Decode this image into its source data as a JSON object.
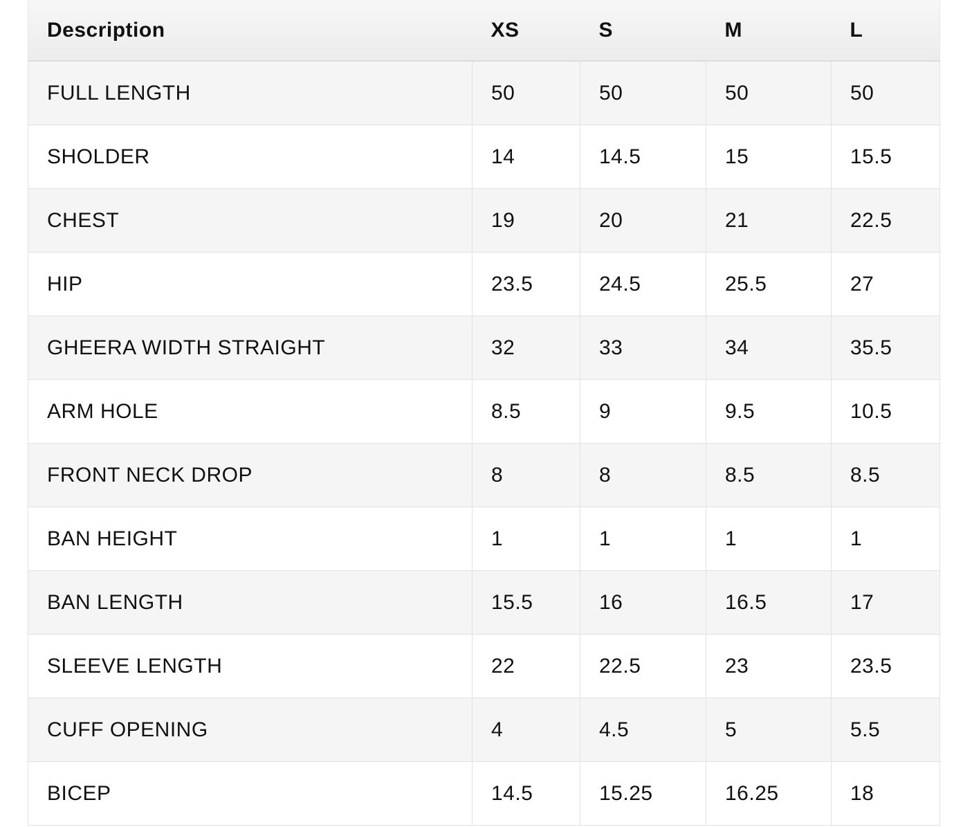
{
  "table": {
    "header": [
      "Description",
      "XS",
      "S",
      "M",
      "L"
    ],
    "rows": [
      [
        "FULL LENGTH",
        "50",
        "50",
        "50",
        "50"
      ],
      [
        "SHOLDER",
        "14",
        "14.5",
        "15",
        "15.5"
      ],
      [
        "CHEST",
        "19",
        "20",
        "21",
        "22.5"
      ],
      [
        "HIP",
        "23.5",
        "24.5",
        "25.5",
        "27"
      ],
      [
        "GHEERA WIDTH STRAIGHT",
        "32",
        "33",
        "34",
        "35.5"
      ],
      [
        "ARM HOLE",
        "8.5",
        "9",
        "9.5",
        "10.5"
      ],
      [
        "FRONT NECK DROP",
        "8",
        "8",
        "8.5",
        "8.5"
      ],
      [
        "BAN HEIGHT",
        "1",
        "1",
        "1",
        "1"
      ],
      [
        "BAN LENGTH",
        "15.5",
        "16",
        "16.5",
        "17"
      ],
      [
        "SLEEVE LENGTH",
        "22",
        "22.5",
        "23",
        "23.5"
      ],
      [
        "CUFF OPENING",
        "4",
        "4.5",
        "5",
        "5.5"
      ],
      [
        "BICEP",
        "14.5",
        "15.25",
        "16.25",
        "18"
      ]
    ]
  }
}
